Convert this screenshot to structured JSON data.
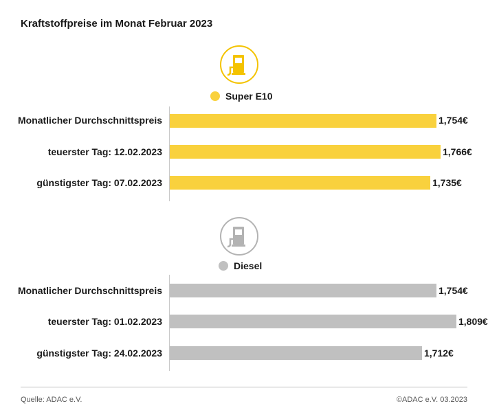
{
  "title": "Kraftstoffpreise im Monat Februar 2023",
  "colors": {
    "super": "#f9d13d",
    "diesel": "#c0c0c0",
    "icon_super": "#f4c300",
    "icon_diesel": "#b3b3b3"
  },
  "chart_data": [
    {
      "type": "bar",
      "orientation": "horizontal",
      "series_name": "Super E10",
      "icon": "fuel-pump-icon",
      "categories": [
        "Monatlicher Durchschnittspreis",
        "teuerster Tag: 12.02.2023",
        "günstigster Tag: 07.02.2023"
      ],
      "values": [
        1.754,
        1.766,
        1.735
      ],
      "value_labels": [
        "1,754€",
        "1,766€",
        "1,735€"
      ]
    },
    {
      "type": "bar",
      "orientation": "horizontal",
      "series_name": "Diesel",
      "icon": "fuel-pump-icon",
      "categories": [
        "Monatlicher Durchschnittspreis",
        "teuerster Tag: 01.02.2023",
        "günstigster Tag: 24.02.2023"
      ],
      "values": [
        1.754,
        1.809,
        1.712
      ],
      "value_labels": [
        "1,754€",
        "1,809€",
        "1,712€"
      ]
    }
  ],
  "footer": {
    "source": "Quelle: ADAC e.V.",
    "copyright": "©ADAC e.V. 03.2023"
  }
}
